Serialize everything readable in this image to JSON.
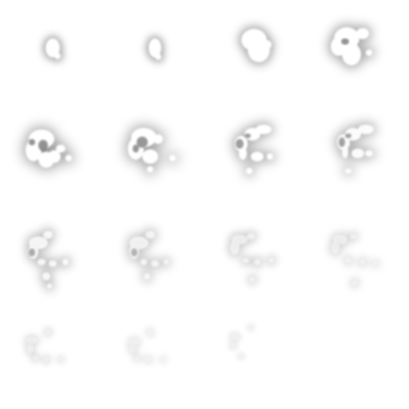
{
  "sheet": {
    "grid_columns": 4,
    "grid_rows": 4,
    "frame_count": 15,
    "background_color": "#ffffff",
    "puff_fill_color": "#ffffff",
    "shadow_color": "#808080"
  }
}
